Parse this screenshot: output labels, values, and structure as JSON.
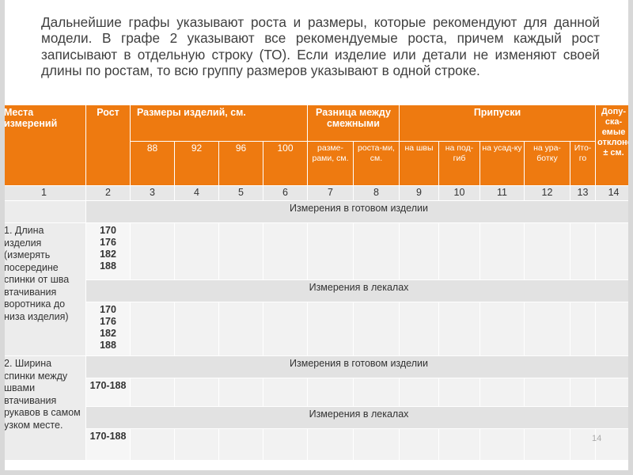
{
  "intro_text": "Дальнейшие графы указывают роста и размеры, которые рекомендуют для данной модели. В графе 2 указывают все рекомендуемые роста, причем каждый рост записывают в отдельную строку (ТО). Если изделие или детали не изменяют своей длины по ростам, то всю группу размеров указывают в одной строке.",
  "table": {
    "header": {
      "places": "Места измерений",
      "height": "Рост",
      "sizes": "Размеры изделий, см.",
      "diff": "Разница между смежными",
      "allowances": "Припуски",
      "tolerance": "Допу-ска-емые отклонения, ± см.",
      "size_values": [
        "88",
        "92",
        "96",
        "100"
      ],
      "diff_sizes": "разме-рами, см.",
      "diff_heights": "роста-ми, см.",
      "allow_seams": "на швы",
      "allow_hem": "на под-гиб",
      "allow_shrink": "на усад-ку",
      "allow_iron": "на ура-ботку",
      "allow_total": "Ито-го"
    },
    "col_numbers": [
      "1",
      "2",
      "3",
      "4",
      "5",
      "6",
      "7",
      "8",
      "9",
      "10",
      "11",
      "12",
      "13",
      "14"
    ],
    "section_finished": "Измерения в готовом изделии",
    "section_patterns": "Измерения в лекалах",
    "row1_label": "1. Длина изделия (измерять посередине спинки от шва втачивания воротника до низа изделия)",
    "row1_heights_a": "170 176 182 188",
    "row1_heights_b": "170 176 182 188",
    "row2_label": "2. Ширина спинки между швами втачивания рукавов в самом узком месте.",
    "row2_heights_a": "170-188",
    "row2_heights_b": "170-188"
  },
  "page_number": "14"
}
